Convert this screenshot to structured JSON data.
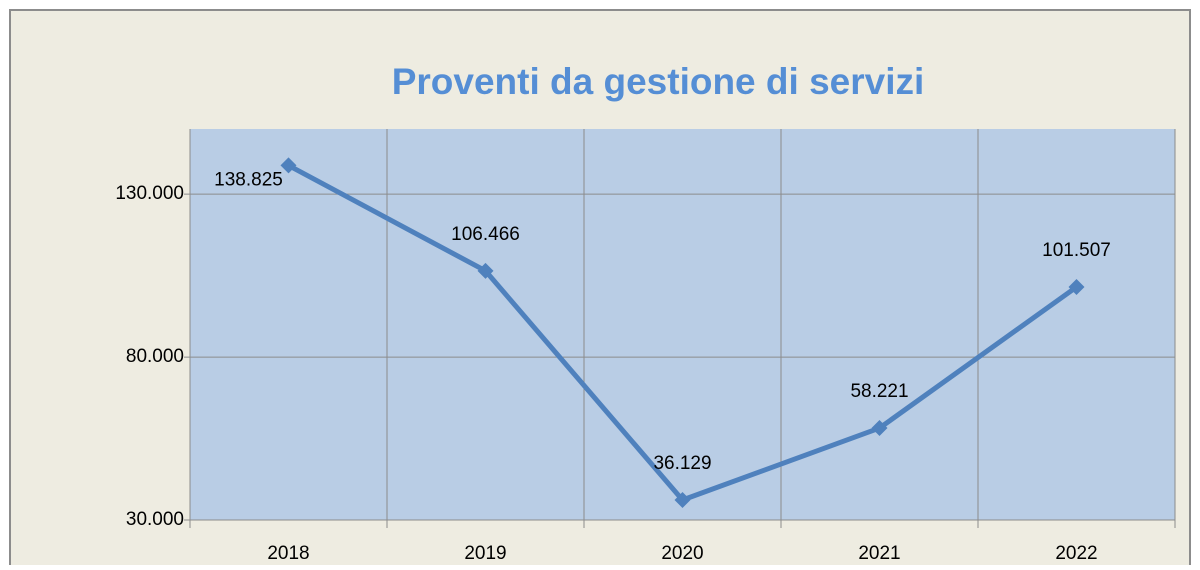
{
  "chart_data": {
    "type": "line",
    "title": "Proventi da gestione di servizi",
    "categories": [
      "2018",
      "2019",
      "2020",
      "2021",
      "2022"
    ],
    "series": [
      {
        "color": "#4f81bd",
        "values": [
          138825,
          106466,
          36129,
          58221,
          101507
        ],
        "value_labels": [
          "138.825",
          "106.466",
          "36.129",
          "58.221",
          "101.507"
        ]
      }
    ],
    "ylim": [
      30000,
      150000
    ],
    "yticks": [
      {
        "value": 30000,
        "label": "30.000"
      },
      {
        "value": 80000,
        "label": "80.000"
      },
      {
        "value": 130000,
        "label": "130.000"
      }
    ],
    "grid": true
  }
}
